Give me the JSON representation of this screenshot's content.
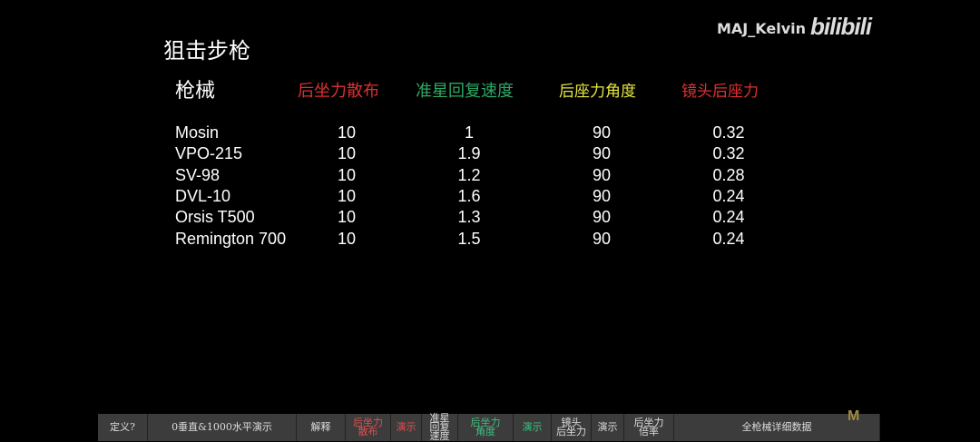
{
  "title": "狙击步枪",
  "watermark": "MAJ_Kelvin",
  "logo": "bilibili",
  "headers": [
    {
      "label": "枪械",
      "color": "#ffffff"
    },
    {
      "label": "后坐力散布",
      "color": "#e03030"
    },
    {
      "label": "准星回复速度",
      "color": "#2fa865"
    },
    {
      "label": "后座力角度",
      "color": "#e6e640"
    },
    {
      "label": "镜头后座力",
      "color": "#e03030"
    }
  ],
  "rows": [
    [
      "Mosin",
      "10",
      "1",
      "90",
      "0.32"
    ],
    [
      "VPO-215",
      "10",
      "1.9",
      "90",
      "0.32"
    ],
    [
      "SV-98",
      "10",
      "1.2",
      "90",
      "0.28"
    ],
    [
      "DVL-10",
      "10",
      "1.6",
      "90",
      "0.24"
    ],
    [
      "Orsis T500",
      "10",
      "1.3",
      "90",
      "0.24"
    ],
    [
      "Remington 700",
      "10",
      "1.5",
      "90",
      "0.24"
    ]
  ],
  "bottom_bar": [
    {
      "label": "定义?",
      "color": "#dddddd"
    },
    {
      "label": "0垂直&1000水平演示",
      "color": "#dddddd"
    },
    {
      "label": "解释",
      "color": "#dddddd"
    },
    {
      "label": "后坐力\n散布",
      "color": "#e05050"
    },
    {
      "label": "演示",
      "color": "#e05050"
    },
    {
      "label": "准星\n回复\n速度",
      "color": "#dddddd"
    },
    {
      "label": "后坐力\n角度",
      "color": "#40c080"
    },
    {
      "label": "演示",
      "color": "#40c080"
    },
    {
      "label": "镜头\n后坐力",
      "color": "#dddddd"
    },
    {
      "label": "演示",
      "color": "#dddddd"
    },
    {
      "label": "后坐力\n倍率",
      "color": "#dddddd"
    },
    {
      "label": "全枪械详细数据",
      "color": "#dddddd"
    }
  ],
  "corner_logo": "M"
}
